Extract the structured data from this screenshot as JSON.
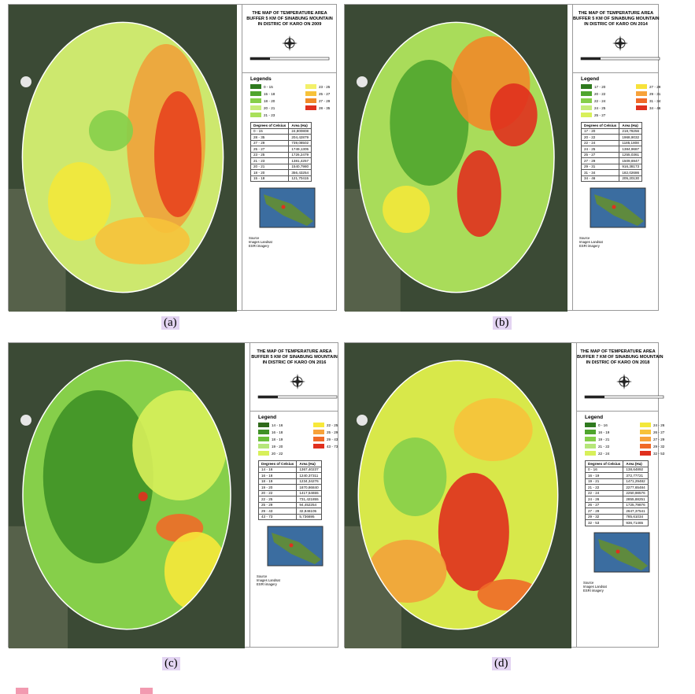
{
  "panels": [
    {
      "caption": "(a)",
      "title": [
        "THE MAP OF TEMPERATURE AREA",
        "BUFFER 5 KM OF SINABUNG MOUNTAIN",
        "IN DISTRIC OF KARO ON 2009"
      ],
      "legend_title": "Legends",
      "legend": [
        {
          "label": "0 - 15",
          "color": "#2f7a1f"
        },
        {
          "label": "15 - 18",
          "color": "#4fa52e"
        },
        {
          "label": "18 - 20",
          "color": "#86cf4a"
        },
        {
          "label": "20 - 21",
          "color": "#c6ec7a"
        },
        {
          "label": "21 - 23",
          "color": "#a9e05a"
        },
        {
          "label": "23 - 25",
          "color": "#f3f06a"
        },
        {
          "label": "25 - 27",
          "color": "#f7c23a"
        },
        {
          "label": "27 - 29",
          "color": "#f08a28"
        },
        {
          "label": "28 - 35",
          "color": "#e0301e"
        }
      ],
      "table": {
        "header": [
          "Degrees of Celsius",
          "Area (Ha)"
        ],
        "rows": [
          [
            "0 - 15",
            "24,800808"
          ],
          [
            "28 - 35",
            "204,42879"
          ],
          [
            "27 - 29",
            "739,08502"
          ],
          [
            "25 - 27",
            "1749,1305"
          ],
          [
            "23 - 25",
            "1726,2479"
          ],
          [
            "21 - 23",
            "1381,4257"
          ],
          [
            "20 - 21",
            "1540,7980"
          ],
          [
            "18 - 20",
            "356,43254"
          ],
          [
            "15 - 18",
            "121,70415"
          ]
        ]
      },
      "source": [
        "Source",
        "Images Landsat",
        "ESRI imagery"
      ]
    },
    {
      "caption": "(b)",
      "title": [
        "THE MAP OF TEMPERATURE AREA",
        "BUFFER 5 KM OF SINABUNG MOUNTAIN",
        "IN DISTRIC OF KARO ON 2014"
      ],
      "legend_title": "Legend",
      "legend": [
        {
          "label": "17 - 20",
          "color": "#2f7a1f"
        },
        {
          "label": "20 - 22",
          "color": "#4fa52e"
        },
        {
          "label": "22 - 24",
          "color": "#86cf4a"
        },
        {
          "label": "24 - 25",
          "color": "#c6ec7a"
        },
        {
          "label": "25 - 27",
          "color": "#d8f05a"
        },
        {
          "label": "27 - 29",
          "color": "#f7e23a"
        },
        {
          "label": "29 - 31",
          "color": "#f7a23a"
        },
        {
          "label": "31 - 34",
          "color": "#f06a28"
        },
        {
          "label": "34 - 46",
          "color": "#e0301e"
        }
      ],
      "table": {
        "header": [
          "Degrees of Celsius",
          "Area (Ha)"
        ],
        "rows": [
          [
            "17 - 20",
            "218,78256"
          ],
          [
            "20 - 22",
            "1968,9032"
          ],
          [
            "22 - 24",
            "1185,1808"
          ],
          [
            "24 - 25",
            "1384,9687"
          ],
          [
            "25 - 27",
            "1255,0361"
          ],
          [
            "27 - 29",
            "1509,6947"
          ],
          [
            "29 - 31",
            "916,38173"
          ],
          [
            "31 - 34",
            "182,02686"
          ],
          [
            "34 - 46",
            "205,20130"
          ]
        ]
      },
      "source": [
        "Source",
        "Images Landsat",
        "ESRI imagery"
      ]
    },
    {
      "caption": "(c)",
      "title": [
        "THE MAP OF TEMPERATURE AREA",
        "BUFFER 5 KM OF SINABUNG MOUNTAIN",
        "IN DISTRIC OF KARO ON 2016"
      ],
      "legend_title": "Legend",
      "legend": [
        {
          "label": "14 - 16",
          "color": "#2f6a1a"
        },
        {
          "label": "16 - 18",
          "color": "#3f9126"
        },
        {
          "label": "18 - 19",
          "color": "#6cc03a"
        },
        {
          "label": "19 - 20",
          "color": "#b6e67a"
        },
        {
          "label": "20 - 22",
          "color": "#d8f05a"
        },
        {
          "label": "22 - 25",
          "color": "#f7e83a"
        },
        {
          "label": "25 - 29",
          "color": "#f7a23a"
        },
        {
          "label": "29 - 43",
          "color": "#f06a28"
        },
        {
          "label": "43 - 73",
          "color": "#e0301e"
        }
      ],
      "table": {
        "header": [
          "Degrees of Celsius",
          "Area (Ha)"
        ],
        "rows": [
          [
            "14 - 16",
            "1367,40237"
          ],
          [
            "16 - 18",
            "1240,37311"
          ],
          [
            "18 - 19",
            "1234,34276"
          ],
          [
            "19 - 20",
            "1870,86840"
          ],
          [
            "20 - 22",
            "1417,54655"
          ],
          [
            "22 - 25",
            "731,421855"
          ],
          [
            "25 - 29",
            "94,452254"
          ],
          [
            "29 - 43",
            "32,846105"
          ],
          [
            "43 - 73",
            "5,736695"
          ]
        ]
      },
      "source": [
        "Source",
        "Images Landsat",
        "ESRI imagery"
      ]
    },
    {
      "caption": "(d)",
      "title": [
        "THE MAP OF TEMPERATURE AREA",
        "BUFFER 7 KM OF SINABUNG MOUNTAIN",
        "IN DISTRIC OF KARO ON 2018"
      ],
      "legend_title": "Legend",
      "legend": [
        {
          "label": "0 - 16",
          "color": "#2f7a1f"
        },
        {
          "label": "16 - 19",
          "color": "#4fa52e"
        },
        {
          "label": "19 - 21",
          "color": "#86cf4a"
        },
        {
          "label": "21 - 22",
          "color": "#b6e67a"
        },
        {
          "label": "22 - 24",
          "color": "#d8f05a"
        },
        {
          "label": "24 - 26",
          "color": "#f3e83a"
        },
        {
          "label": "26 - 27",
          "color": "#f7c23a"
        },
        {
          "label": "27 - 29",
          "color": "#f7a23a"
        },
        {
          "label": "29 - 32",
          "color": "#f06a28"
        },
        {
          "label": "32 - 53",
          "color": "#e0301e"
        }
      ],
      "table": {
        "header": [
          "Degrees of Celsius",
          "Area (Ha)"
        ],
        "rows": [
          [
            "0 - 16",
            "138,64892"
          ],
          [
            "16 - 19",
            "372,77721"
          ],
          [
            "19 - 21",
            "1471,29482"
          ],
          [
            "21 - 22",
            "2277,65484"
          ],
          [
            "22 - 24",
            "2250,98576"
          ],
          [
            "24 - 26",
            "2855,88251"
          ],
          [
            "26 - 27",
            "1725,79876"
          ],
          [
            "27 - 29",
            "2647,37541"
          ],
          [
            "29 - 32",
            "785,61034"
          ],
          [
            "32 - 53",
            "936,71465"
          ]
        ]
      },
      "source": [
        "Source",
        "Images Landsat",
        "ESRI imagery"
      ]
    }
  ]
}
